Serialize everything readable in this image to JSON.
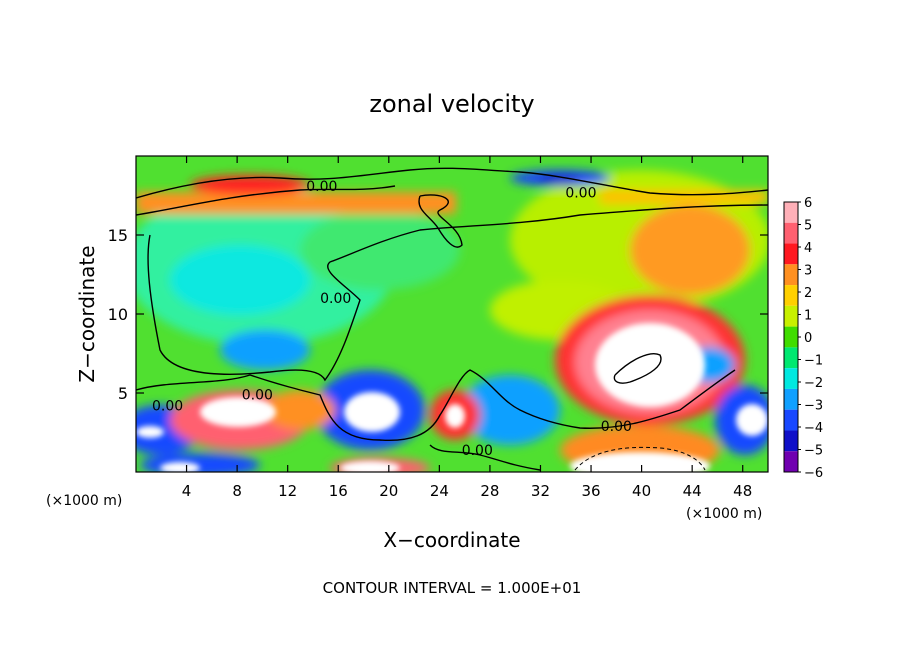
{
  "chart_data": {
    "type": "heatmap",
    "title": "zonal velocity",
    "xlabel": "X−coordinate",
    "ylabel": "Z−coordinate",
    "x_units": "(×1000 m)",
    "x_units_right": "(×1000 m)",
    "xlim": [
      0,
      50
    ],
    "ylim": [
      0,
      20
    ],
    "x_ticks": [
      "4",
      "8",
      "12",
      "16",
      "20",
      "24",
      "28",
      "32",
      "36",
      "40",
      "44",
      "48"
    ],
    "x_tick_values": [
      4,
      8,
      12,
      16,
      20,
      24,
      28,
      32,
      36,
      40,
      44,
      48
    ],
    "y_ticks": [
      "5",
      "10",
      "15"
    ],
    "y_tick_values": [
      5,
      10,
      15
    ],
    "colorbar": {
      "labels": [
        "6",
        "5",
        "4",
        "3",
        "2",
        "1",
        "0",
        "−1",
        "−2",
        "−3",
        "−4",
        "−5",
        "−6"
      ],
      "colors": [
        "#ffb0b8",
        "#ff6070",
        "#ff1820",
        "#ff9020",
        "#ffd000",
        "#c8f000",
        "#40dd00",
        "#00e870",
        "#00e8e0",
        "#10a0ff",
        "#1848ff",
        "#1010c8",
        "#7000b0"
      ]
    },
    "contour_labels": [
      {
        "text": "0.00",
        "x": 14.7,
        "z": 18.1
      },
      {
        "text": "0.00",
        "x": 35.2,
        "z": 17.7
      },
      {
        "text": "0.00",
        "x": 15.8,
        "z": 11.0
      },
      {
        "text": "0.00",
        "x": 9.6,
        "z": 4.9
      },
      {
        "text": "0.00",
        "x": 2.5,
        "z": 4.2
      },
      {
        "text": "0.00",
        "x": 38.0,
        "z": 2.9
      },
      {
        "text": "0.00",
        "x": 27.0,
        "z": 1.4
      }
    ],
    "footer": "CONTOUR INTERVAL = 1.000E+01"
  }
}
